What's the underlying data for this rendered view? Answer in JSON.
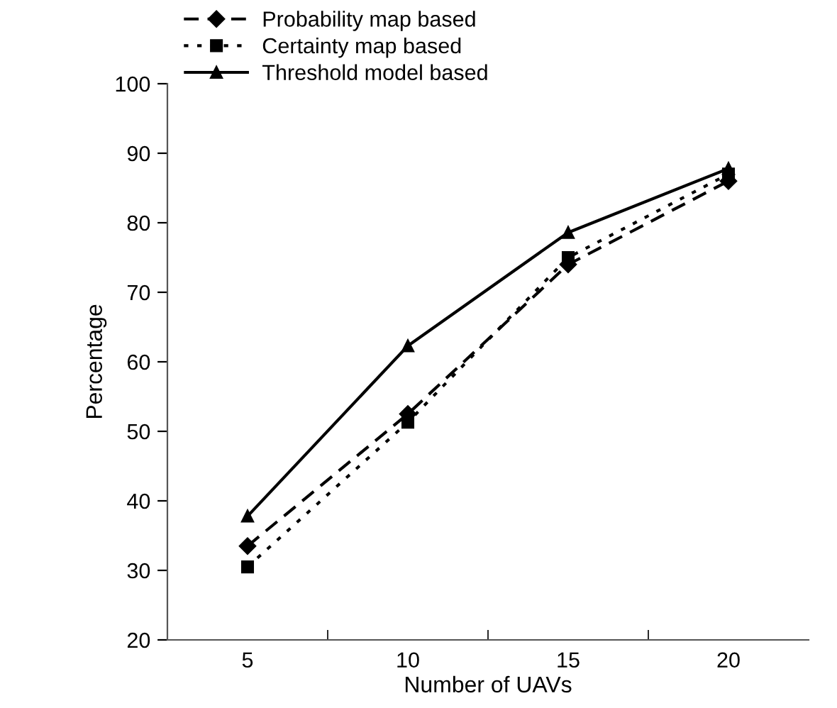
{
  "chart_data": {
    "type": "line",
    "xlabel": "Number of UAVs",
    "ylabel": "Percentage",
    "categories": [
      "5",
      "10",
      "15",
      "20"
    ],
    "series": [
      {
        "name": "Probability map based",
        "color": "#000000",
        "marker": "diamond",
        "line_style": "dashed",
        "values": [
          33.5,
          52.5,
          74,
          86
        ]
      },
      {
        "name": "Certainty map based",
        "color": "#000000",
        "marker": "square",
        "line_style": "dotted",
        "values": [
          30.5,
          51.3,
          75,
          87
        ]
      },
      {
        "name": "Threshold model based",
        "color": "#000000",
        "marker": "triangle",
        "line_style": "solid",
        "values": [
          37.8,
          62.3,
          78.6,
          87.8
        ]
      }
    ],
    "ylim": [
      20,
      100
    ],
    "yticks": [
      20,
      30,
      40,
      50,
      60,
      70,
      80,
      90,
      100
    ],
    "grid": false,
    "legend": "top left"
  }
}
